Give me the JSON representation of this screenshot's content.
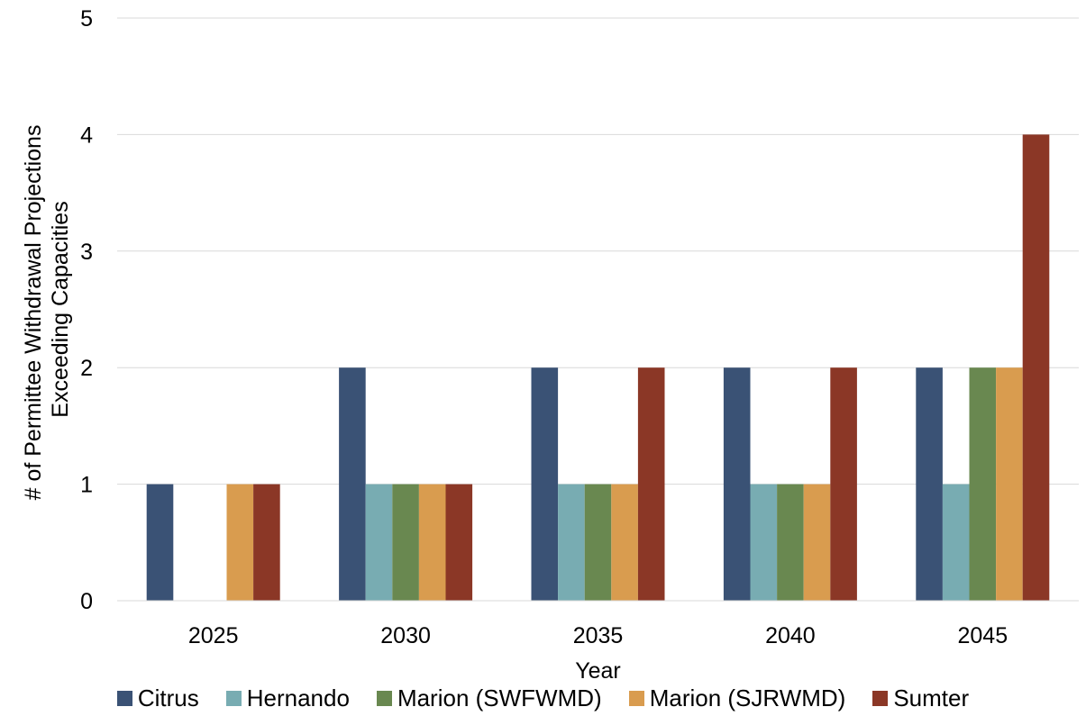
{
  "chart_data": {
    "type": "bar",
    "title": "",
    "xlabel": "Year",
    "ylabel_lines": [
      "# of Permittee Withdrawal Projections",
      "Exceeding Capacities"
    ],
    "categories": [
      "2025",
      "2030",
      "2035",
      "2040",
      "2045"
    ],
    "ylim": [
      0,
      5
    ],
    "yticks": [
      "0",
      "1",
      "2",
      "3",
      "4",
      "5"
    ],
    "grid": true,
    "legend_position": "bottom",
    "series": [
      {
        "name": "Citrus",
        "color": "#3a5275",
        "values": [
          1,
          2,
          2,
          2,
          2
        ]
      },
      {
        "name": "Hernando",
        "color": "#78acb2",
        "values": [
          0,
          1,
          1,
          1,
          1
        ]
      },
      {
        "name": "Marion (SWFWMD)",
        "color": "#698850",
        "values": [
          0,
          1,
          1,
          1,
          2
        ]
      },
      {
        "name": "Marion (SJRWMD)",
        "color": "#d99c4f",
        "values": [
          1,
          1,
          1,
          1,
          2
        ]
      },
      {
        "name": "Sumter",
        "color": "#8b3726",
        "values": [
          1,
          1,
          2,
          2,
          4
        ]
      }
    ]
  }
}
